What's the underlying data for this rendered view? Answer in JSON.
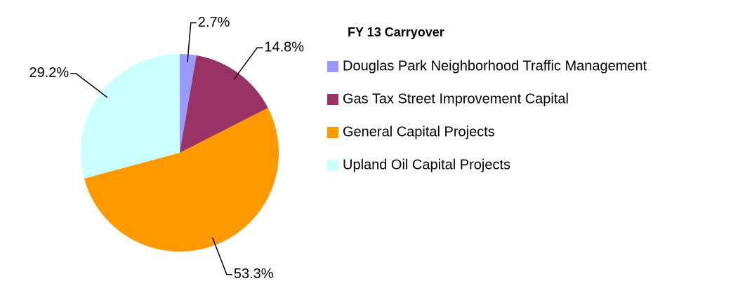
{
  "chart_data": {
    "type": "pie",
    "title": "FY 13 Carryover",
    "categories": [
      "Douglas Park Neighborhood Traffic Management",
      "Gas Tax Street Improvement Capital",
      "General Capital Projects",
      "Upland Oil Capital Projects"
    ],
    "values": [
      2.7,
      14.8,
      53.3,
      29.2
    ],
    "value_labels": [
      "2.7%",
      "14.8%",
      "53.3%",
      "29.2%"
    ],
    "colors": [
      "#9999ff",
      "#993366",
      "#ff9900",
      "#ccffff"
    ],
    "legend": "right"
  }
}
